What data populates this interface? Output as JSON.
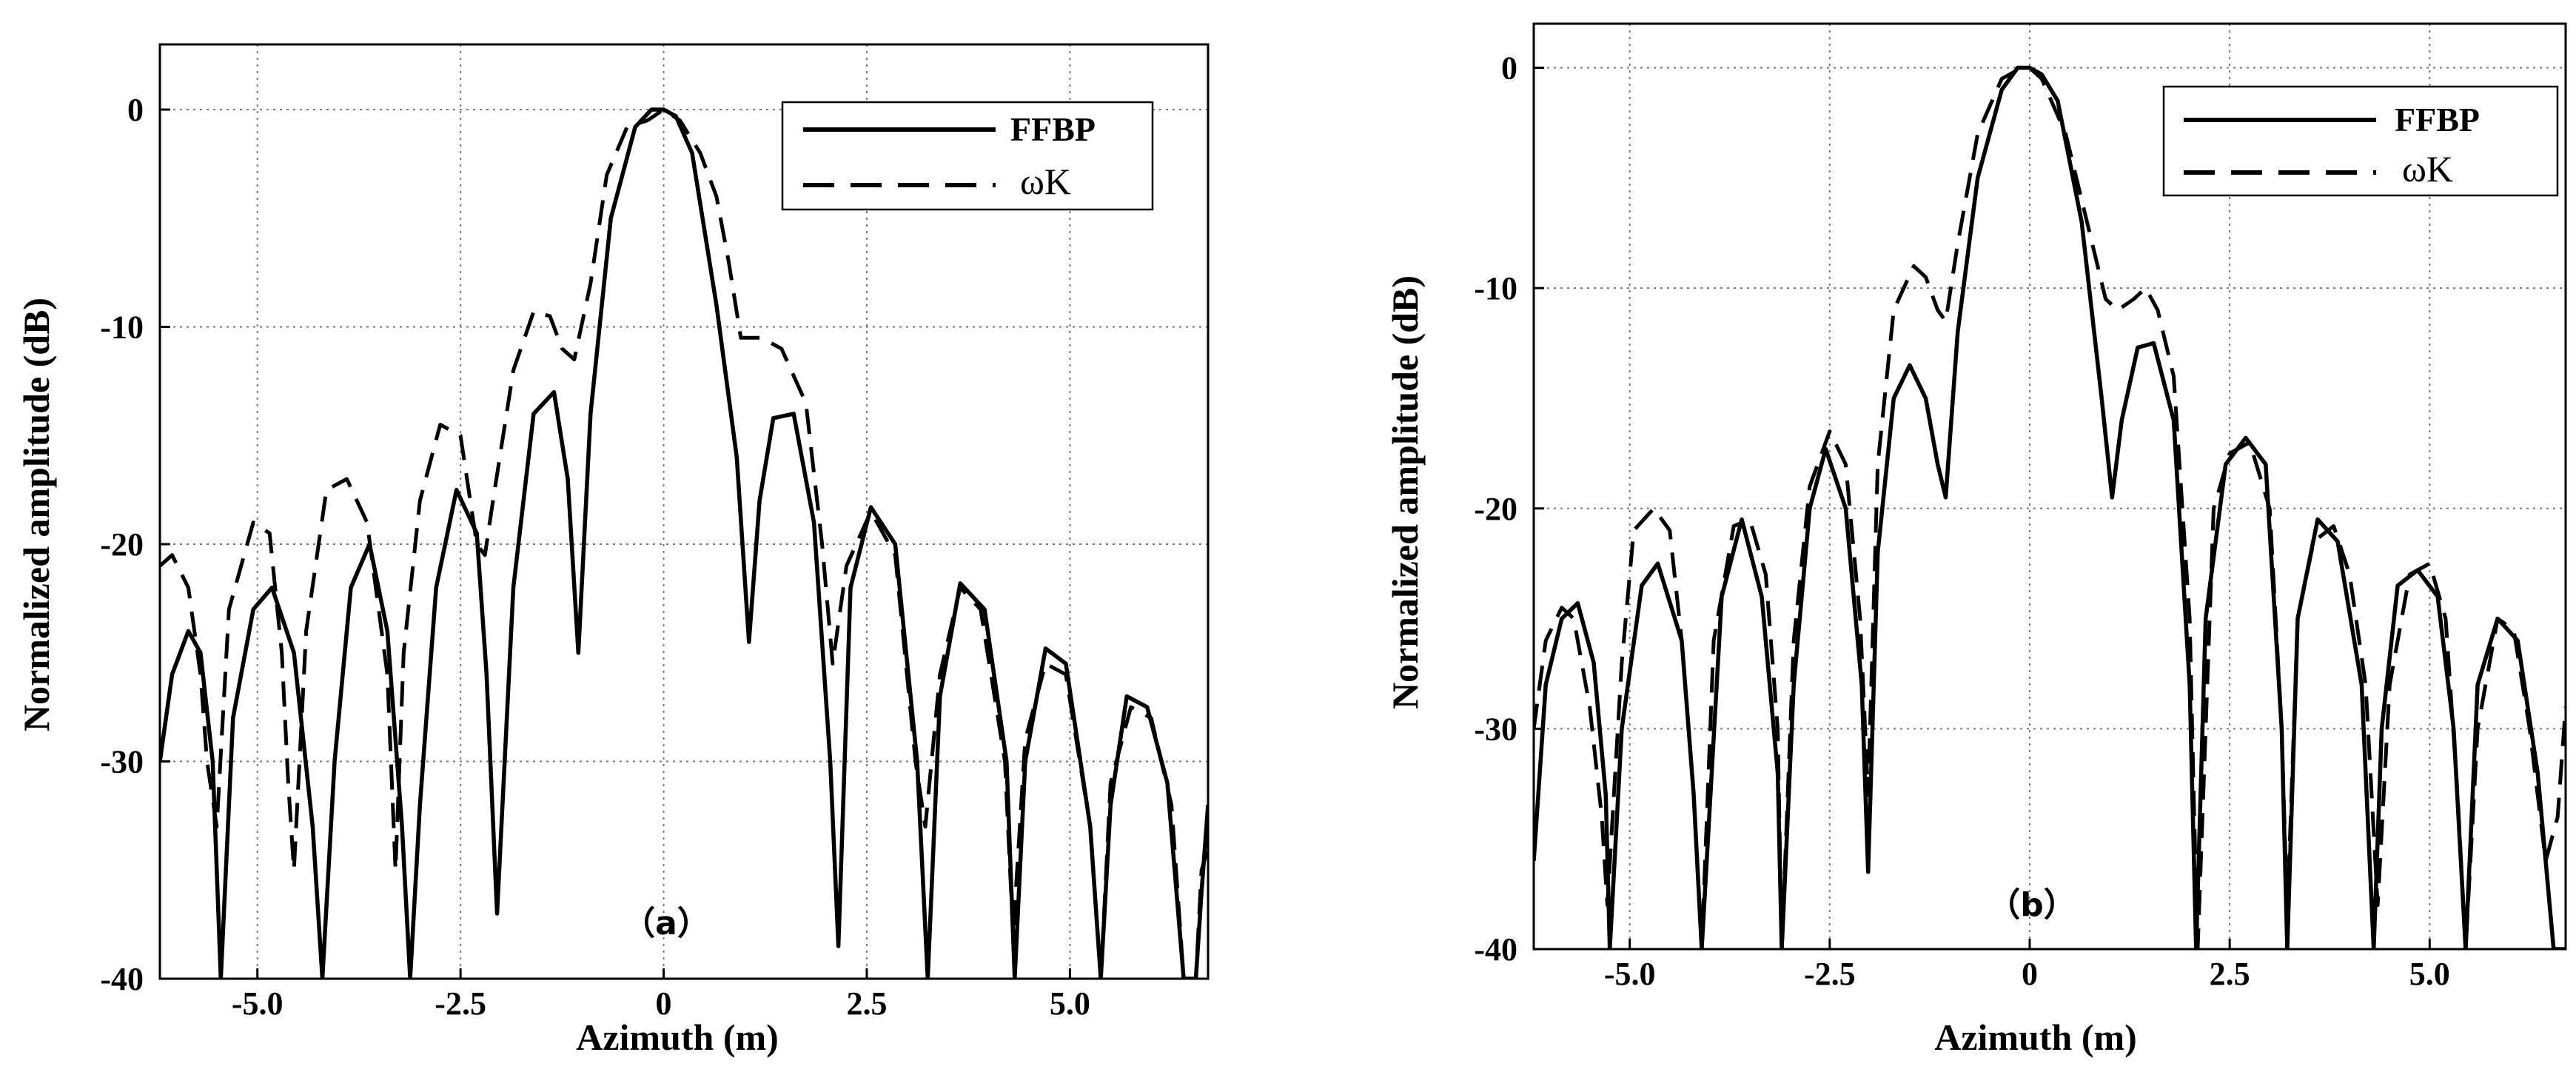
{
  "chart_data": [
    {
      "type": "line",
      "panel_label": "（a）",
      "xlabel": "Azimuth (m)",
      "ylabel": "Normalized amplitude (dB)",
      "xlim": [
        -6.2,
        6.7
      ],
      "ylim": [
        -40,
        3
      ],
      "x_ticks": [
        -5.0,
        -2.5,
        0,
        2.5,
        5.0
      ],
      "x_tick_labels": [
        "-5.0",
        "-2.5",
        "0",
        "2.5",
        "5.0"
      ],
      "y_ticks": [
        0,
        -10,
        -20,
        -30,
        -40
      ],
      "y_tick_labels": [
        "0",
        "-10",
        "-20",
        "-30",
        "-40"
      ],
      "grid": true,
      "legend_position": "top-right",
      "series": [
        {
          "name": "FFBP",
          "style": "solid",
          "x": [
            -6.2,
            -6.05,
            -5.85,
            -5.7,
            -5.55,
            -5.45,
            -5.3,
            -5.05,
            -4.82,
            -4.55,
            -4.32,
            -4.2,
            -4.05,
            -3.85,
            -3.62,
            -3.4,
            -3.22,
            -3.12,
            -3.0,
            -2.8,
            -2.55,
            -2.3,
            -2.18,
            -2.05,
            -1.85,
            -1.6,
            -1.35,
            -1.18,
            -1.05,
            -0.9,
            -0.65,
            -0.35,
            -0.15,
            0.0,
            0.15,
            0.35,
            0.65,
            0.9,
            1.05,
            1.18,
            1.35,
            1.6,
            1.85,
            2.05,
            2.15,
            2.3,
            2.55,
            2.85,
            3.12,
            3.25,
            3.4,
            3.65,
            3.95,
            4.22,
            4.32,
            4.45,
            4.7,
            4.95,
            5.25,
            5.38,
            5.5,
            5.7,
            5.95,
            6.2,
            6.4,
            6.55,
            6.62,
            6.7
          ],
          "y": [
            -30,
            -26,
            -24,
            -25,
            -30,
            -40,
            -28,
            -23,
            -22,
            -25,
            -33,
            -40,
            -30,
            -22,
            -20,
            -24,
            -33,
            -40,
            -32,
            -22,
            -17.5,
            -19.5,
            -26,
            -37,
            -22,
            -14,
            -13,
            -17,
            -25,
            -14,
            -5,
            -0.8,
            0,
            0,
            -0.3,
            -2,
            -9,
            -16,
            -24.5,
            -18,
            -14.2,
            -14,
            -19,
            -30,
            -38.5,
            -22,
            -18.3,
            -20,
            -30,
            -40,
            -27,
            -21.8,
            -23,
            -30,
            -40,
            -30,
            -24.8,
            -25.5,
            -33,
            -40,
            -32,
            -27,
            -27.5,
            -31,
            -40,
            -40,
            -36,
            -32
          ]
        },
        {
          "name": "ωK",
          "style": "dashed",
          "x": [
            -6.2,
            -6.05,
            -5.85,
            -5.7,
            -5.62,
            -5.5,
            -5.35,
            -5.05,
            -4.85,
            -4.7,
            -4.62,
            -4.55,
            -4.4,
            -4.15,
            -3.9,
            -3.65,
            -3.4,
            -3.3,
            -3.2,
            -3.0,
            -2.75,
            -2.5,
            -2.3,
            -2.2,
            -2.1,
            -1.85,
            -1.6,
            -1.4,
            -1.25,
            -1.1,
            -0.9,
            -0.7,
            -0.45,
            -0.2,
            0.0,
            0.2,
            0.45,
            0.65,
            0.8,
            0.95,
            1.2,
            1.45,
            1.75,
            1.95,
            2.08,
            2.25,
            2.55,
            2.85,
            3.1,
            3.22,
            3.4,
            3.65,
            3.9,
            4.2,
            4.3,
            4.45,
            4.7,
            4.95,
            5.25,
            5.38,
            5.5,
            5.75,
            6.0,
            6.25,
            6.4,
            6.55,
            6.62,
            6.7
          ],
          "y": [
            -21,
            -20.5,
            -22,
            -26,
            -30,
            -33,
            -23,
            -19,
            -19.5,
            -25,
            -31,
            -35,
            -24,
            -17.5,
            -17,
            -19,
            -26,
            -35,
            -25,
            -18,
            -14.5,
            -15,
            -20,
            -20.5,
            -18,
            -12,
            -9.3,
            -9.5,
            -11,
            -11.5,
            -8,
            -3,
            -0.8,
            -0.5,
            0,
            -0.5,
            -2,
            -4,
            -7,
            -10.5,
            -10.5,
            -11,
            -13.5,
            -20,
            -25.5,
            -21,
            -18.5,
            -20.5,
            -30,
            -33,
            -26,
            -22,
            -23,
            -30,
            -38,
            -29,
            -25.5,
            -26,
            -33,
            -40,
            -31,
            -27.5,
            -28,
            -32,
            -40,
            -40,
            -35,
            -34
          ]
        }
      ]
    },
    {
      "type": "line",
      "panel_label": "（b）",
      "xlabel": "Azimuth (m)",
      "ylabel": "Normalized amplitude (dB)",
      "xlim": [
        -6.2,
        6.7
      ],
      "ylim": [
        -40,
        2
      ],
      "x_ticks": [
        -5.0,
        -2.5,
        0,
        2.5,
        5.0
      ],
      "x_tick_labels": [
        "-5.0",
        "-2.5",
        "0",
        "2.5",
        "5.0"
      ],
      "y_ticks": [
        0,
        -10,
        -20,
        -30,
        -40
      ],
      "y_tick_labels": [
        "0",
        "-10",
        "-20",
        "-30",
        "-40"
      ],
      "grid": true,
      "legend_position": "top-right",
      "series": [
        {
          "name": "FFBP",
          "style": "solid",
          "x": [
            -6.2,
            -6.05,
            -5.85,
            -5.65,
            -5.45,
            -5.3,
            -5.25,
            -5.1,
            -4.85,
            -4.65,
            -4.35,
            -4.2,
            -4.1,
            -3.85,
            -3.6,
            -3.35,
            -3.15,
            -3.1,
            -2.95,
            -2.75,
            -2.55,
            -2.3,
            -2.1,
            -2.02,
            -1.9,
            -1.7,
            -1.5,
            -1.3,
            -1.15,
            -1.05,
            -0.9,
            -0.65,
            -0.35,
            -0.15,
            0.0,
            0.15,
            0.35,
            0.65,
            0.9,
            1.03,
            1.15,
            1.35,
            1.55,
            1.8,
            2.0,
            2.08,
            2.2,
            2.45,
            2.7,
            2.95,
            3.15,
            3.22,
            3.35,
            3.6,
            3.85,
            4.15,
            4.3,
            4.4,
            4.6,
            4.85,
            5.1,
            5.3,
            5.45,
            5.6,
            5.85,
            6.1,
            6.35,
            6.55,
            6.7
          ],
          "y": [
            -36,
            -28,
            -25,
            -24.3,
            -27,
            -33,
            -40,
            -30,
            -23.5,
            -22.5,
            -26,
            -33,
            -40,
            -24,
            -20.5,
            -24,
            -32,
            -40,
            -28,
            -20,
            -17.3,
            -20,
            -28,
            -36.5,
            -22,
            -15,
            -13.5,
            -15,
            -18,
            -19.5,
            -12,
            -5,
            -1,
            0,
            0,
            -0.3,
            -1.5,
            -7,
            -15,
            -19.5,
            -16,
            -12.7,
            -12.5,
            -16,
            -28,
            -40,
            -25,
            -18,
            -16.8,
            -18,
            -30,
            -40,
            -25,
            -20.5,
            -21.5,
            -28,
            -40,
            -30,
            -23.5,
            -22.8,
            -24,
            -30,
            -40,
            -28,
            -25,
            -26,
            -32,
            -40,
            -40
          ]
        },
        {
          "name": "ωK",
          "style": "dashed",
          "x": [
            -6.2,
            -6.05,
            -5.85,
            -5.7,
            -5.5,
            -5.35,
            -5.28,
            -5.1,
            -4.95,
            -4.7,
            -4.5,
            -4.35,
            -4.2,
            -4.1,
            -3.95,
            -3.7,
            -3.5,
            -3.3,
            -3.15,
            -3.1,
            -2.95,
            -2.75,
            -2.5,
            -2.3,
            -2.12,
            -2.02,
            -1.9,
            -1.7,
            -1.45,
            -1.3,
            -1.15,
            -1.05,
            -0.9,
            -0.65,
            -0.35,
            -0.1,
            0.0,
            0.15,
            0.45,
            0.75,
            0.95,
            1.1,
            1.3,
            1.45,
            1.6,
            1.8,
            2.0,
            2.05,
            2.1,
            2.3,
            2.5,
            2.75,
            3.0,
            3.15,
            3.22,
            3.35,
            3.55,
            3.8,
            4.0,
            4.2,
            4.35,
            4.5,
            4.75,
            5.0,
            5.2,
            5.35,
            5.45,
            5.6,
            5.85,
            6.05,
            6.25,
            6.45,
            6.6,
            6.7
          ],
          "y": [
            -30,
            -26,
            -24.5,
            -25,
            -29,
            -34,
            -38,
            -27,
            -21,
            -20,
            -21,
            -26,
            -33,
            -40,
            -26,
            -20.8,
            -20.5,
            -23,
            -30,
            -40,
            -26,
            -19,
            -16.5,
            -18,
            -25,
            -33,
            -18,
            -11,
            -9,
            -9.5,
            -11,
            -11.5,
            -8,
            -3,
            -0.5,
            0,
            0,
            -0.5,
            -3,
            -7.5,
            -10.5,
            -11,
            -10.5,
            -10,
            -11,
            -14,
            -25,
            -33,
            -40,
            -20,
            -17.5,
            -17,
            -20,
            -30,
            -38.5,
            -25,
            -21.5,
            -20.8,
            -23,
            -28,
            -38,
            -28,
            -23,
            -22.5,
            -25,
            -33,
            -40,
            -30,
            -25,
            -25.5,
            -30,
            -36,
            -34,
            -29
          ]
        }
      ]
    }
  ]
}
